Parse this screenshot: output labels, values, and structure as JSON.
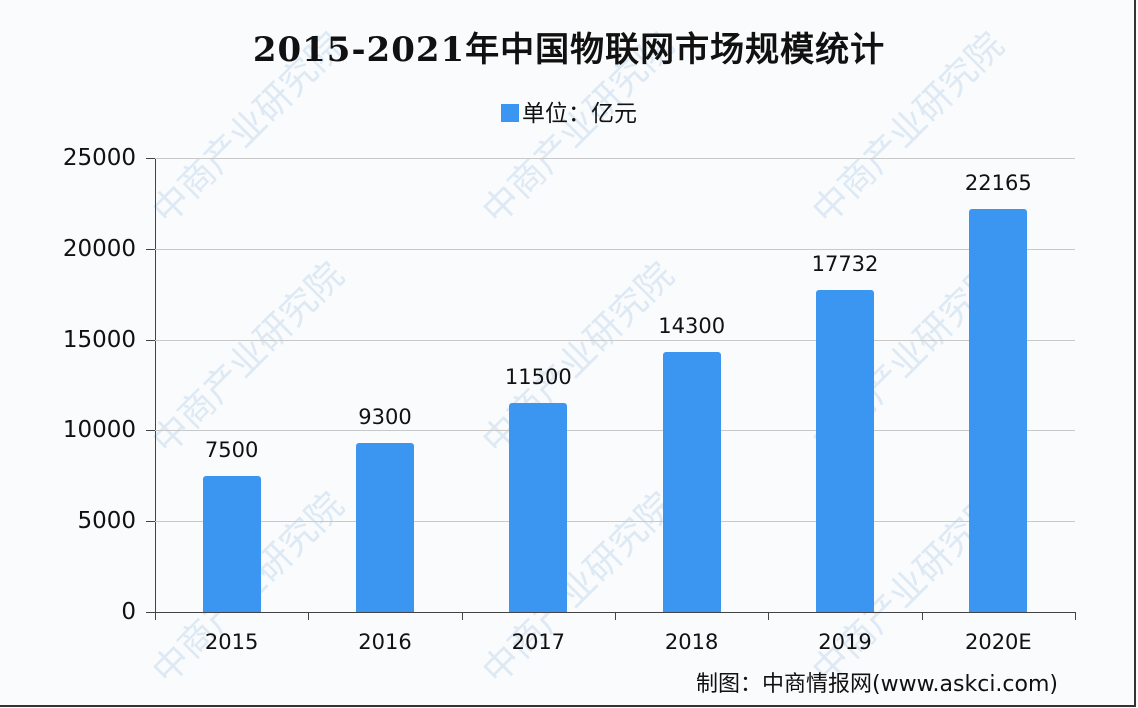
{
  "chart_data": {
    "type": "bar",
    "title": "2015-2021年中国物联网市场规模统计",
    "categories": [
      "2015",
      "2016",
      "2017",
      "2018",
      "2019",
      "2020E"
    ],
    "series": [
      {
        "name": "单位：亿元",
        "values": [
          7500,
          9300,
          11500,
          14300,
          17732,
          22165
        ]
      }
    ],
    "data_labels": [
      "7500",
      "9300",
      "11500",
      "14300",
      "17732",
      "22165"
    ],
    "xlabel": "",
    "ylabel": "",
    "ylim": [
      0,
      25000
    ],
    "yticks": [
      "0",
      "5000",
      "10000",
      "15000",
      "20000",
      "25000"
    ],
    "grid": true,
    "legend_position": "top",
    "bar_color": "#3a96f0"
  },
  "header": {
    "title": "2015-2021年中国物联网市场规模统计",
    "legend_label": "单位：亿元"
  },
  "footer": {
    "source": "制图：中商情报网(www.askci.com)"
  },
  "watermark": {
    "text": "中商产业研究院"
  }
}
